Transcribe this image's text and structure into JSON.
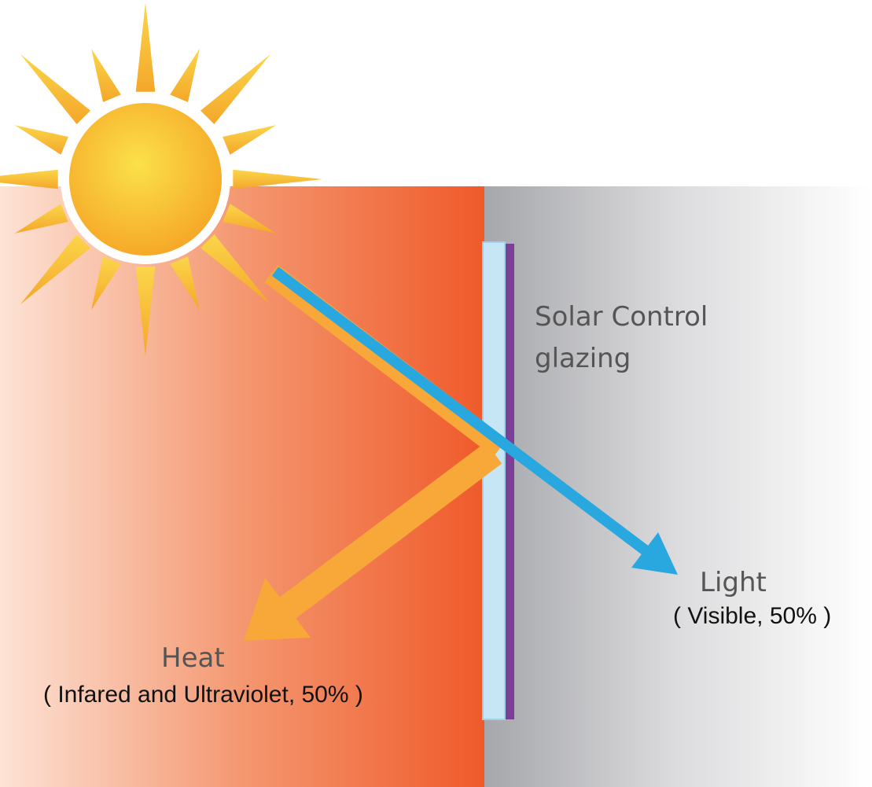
{
  "glazing_label": [
    "Solar Control",
    "glazing"
  ],
  "light": {
    "label": "Light",
    "detail": "( Visible, 50% )"
  },
  "heat": {
    "label": "Heat",
    "detail": "( Infared and Ultraviolet, 50% )"
  }
}
